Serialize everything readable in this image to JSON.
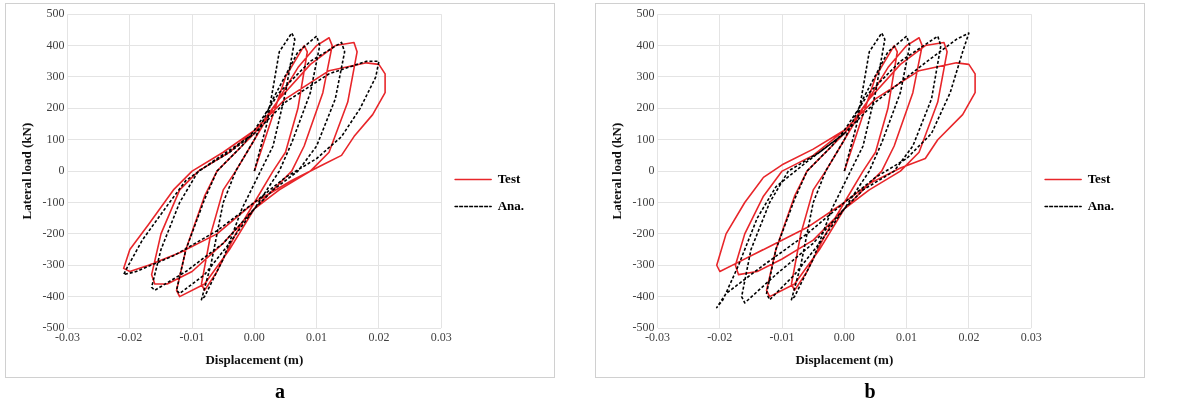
{
  "chart_data": [
    {
      "type": "line",
      "xlabel": "Displacement (m)",
      "ylabel": "Lateral load (kN)",
      "annotations": [
        "a"
      ],
      "xlim": [
        -0.03,
        0.03
      ],
      "ylim": [
        -500,
        500
      ],
      "xticks": [
        {
          "value": -0.03,
          "label": "-0.03"
        },
        {
          "value": -0.02,
          "label": "-0.02"
        },
        {
          "value": -0.01,
          "label": "-0.01"
        },
        {
          "value": 0,
          "label": "0.00"
        },
        {
          "value": 0.01,
          "label": "0.01"
        },
        {
          "value": 0.02,
          "label": "0.02"
        },
        {
          "value": 0.03,
          "label": "0.03"
        }
      ],
      "yticks": [
        -500,
        -400,
        -300,
        -200,
        -100,
        0,
        100,
        200,
        300,
        400,
        500
      ],
      "grid": true,
      "legend": "right",
      "marker": "none",
      "series": [
        {
          "name": "Test",
          "color": "#e8262a",
          "line_style": "solid",
          "x": [
            0,
            0.002,
            0.005,
            0.008,
            0.0085,
            0.007,
            0.005,
            0.003,
            0,
            -0.003,
            -0.006,
            -0.008,
            -0.0085,
            -0.007,
            -0.005,
            -0.003,
            0,
            0.003,
            0.007,
            0.01,
            0.012,
            0.0125,
            0.011,
            0.008,
            0.006,
            0.002,
            0,
            -0.004,
            -0.008,
            -0.012,
            -0.0125,
            -0.011,
            -0.008,
            -0.006,
            -0.002,
            0,
            0.004,
            0.009,
            0.013,
            0.016,
            0.0165,
            0.015,
            0.012,
            0.009,
            0.004,
            0,
            -0.005,
            -0.01,
            -0.014,
            -0.016,
            -0.0165,
            -0.015,
            -0.012,
            -0.009,
            -0.004,
            0,
            0.005,
            0.012,
            0.018,
            0.02,
            0.021,
            0.021,
            0.019,
            0.016,
            0.014,
            0.011,
            0.006,
            0,
            -0.006,
            -0.012,
            -0.017,
            -0.02,
            -0.021,
            -0.02,
            -0.017,
            -0.013,
            -0.01,
            -0.005,
            0
          ],
          "values": [
            0,
            120,
            300,
            400,
            380,
            200,
            60,
            0,
            -100,
            -200,
            -320,
            -380,
            -360,
            -200,
            -60,
            0,
            100,
            200,
            330,
            400,
            425,
            400,
            250,
            80,
            0,
            -80,
            -120,
            -250,
            -360,
            -400,
            -380,
            -250,
            -80,
            0,
            80,
            120,
            230,
            340,
            400,
            410,
            380,
            220,
            60,
            0,
            -60,
            -120,
            -230,
            -320,
            -360,
            -360,
            -330,
            -200,
            -60,
            0,
            60,
            130,
            230,
            320,
            345,
            340,
            310,
            250,
            180,
            110,
            50,
            20,
            -30,
            -100,
            -200,
            -260,
            -300,
            -320,
            -310,
            -250,
            -170,
            -60,
            0,
            60,
            130
          ]
        },
        {
          "name": "Ana.",
          "color": "#000000",
          "line_style": "dashed",
          "x": [
            0,
            0.002,
            0.004,
            0.006,
            0.0065,
            0.005,
            0.003,
            0.001,
            -0.002,
            -0.005,
            -0.008,
            -0.0085,
            -0.007,
            -0.005,
            -0.003,
            0,
            0.003,
            0.007,
            0.01,
            0.0105,
            0.009,
            0.006,
            0.004,
            0,
            -0.004,
            -0.008,
            -0.012,
            -0.0125,
            -0.011,
            -0.008,
            -0.006,
            -0.002,
            0,
            0.004,
            0.009,
            0.014,
            0.0145,
            0.013,
            0.01,
            0.007,
            0.003,
            0,
            -0.005,
            -0.011,
            -0.016,
            -0.0165,
            -0.015,
            -0.012,
            -0.009,
            -0.004,
            0,
            0.005,
            0.012,
            0.018,
            0.02,
            0.0195,
            0.017,
            0.014,
            0.01,
            0.005,
            0,
            -0.006,
            -0.013,
            -0.019,
            -0.021,
            -0.0205,
            -0.018,
            -0.014,
            -0.011,
            -0.006,
            0
          ],
          "values": [
            0,
            150,
            380,
            440,
            420,
            250,
            80,
            0,
            -120,
            -280,
            -400,
            -410,
            -300,
            -100,
            0,
            100,
            230,
            380,
            430,
            400,
            250,
            90,
            0,
            -120,
            -230,
            -330,
            -390,
            -380,
            -250,
            -90,
            0,
            80,
            130,
            250,
            350,
            410,
            380,
            230,
            80,
            0,
            -60,
            -120,
            -230,
            -320,
            -380,
            -370,
            -250,
            -100,
            0,
            60,
            120,
            220,
            310,
            350,
            350,
            300,
            200,
            110,
            40,
            -20,
            -100,
            -190,
            -270,
            -320,
            -330,
            -310,
            -220,
            -110,
            -30,
            40,
            120
          ]
        }
      ]
    },
    {
      "type": "line",
      "xlabel": "Displacement (m)",
      "ylabel": "Lateral load (kN)",
      "annotations": [
        "b"
      ],
      "xlim": [
        -0.03,
        0.03
      ],
      "ylim": [
        -500,
        500
      ],
      "xticks": [
        {
          "value": -0.03,
          "label": "-0.03"
        },
        {
          "value": -0.02,
          "label": "-0.02"
        },
        {
          "value": -0.01,
          "label": "-0.01"
        },
        {
          "value": 0,
          "label": "0.00"
        },
        {
          "value": 0.01,
          "label": "0.01"
        },
        {
          "value": 0.02,
          "label": "0.02"
        },
        {
          "value": 0.03,
          "label": "0.03"
        }
      ],
      "yticks": [
        -500,
        -400,
        -300,
        -200,
        -100,
        0,
        100,
        200,
        300,
        400,
        500
      ],
      "grid": true,
      "legend": "right",
      "marker": "none",
      "series": [
        {
          "name": "Test",
          "color": "#e8262a",
          "line_style": "solid",
          "x": [
            0,
            0.002,
            0.005,
            0.008,
            0.0085,
            0.007,
            0.005,
            0.003,
            0,
            -0.003,
            -0.006,
            -0.008,
            -0.0085,
            -0.007,
            -0.005,
            -0.003,
            0,
            0.003,
            0.007,
            0.01,
            0.012,
            0.0125,
            0.011,
            0.008,
            0.006,
            0.002,
            0,
            -0.004,
            -0.008,
            -0.012,
            -0.0125,
            -0.011,
            -0.008,
            -0.006,
            -0.002,
            0,
            0.004,
            0.009,
            0.013,
            0.016,
            0.0165,
            0.015,
            0.012,
            0.009,
            0.004,
            0,
            -0.005,
            -0.01,
            -0.014,
            -0.017,
            -0.0175,
            -0.016,
            -0.013,
            -0.01,
            -0.005,
            0,
            0.005,
            0.012,
            0.018,
            0.02,
            0.021,
            0.021,
            0.019,
            0.015,
            0.013,
            0.009,
            0.004,
            0,
            -0.006,
            -0.012,
            -0.017,
            -0.02,
            -0.0205,
            -0.019,
            -0.016,
            -0.013,
            -0.01,
            -0.005,
            0
          ],
          "values": [
            0,
            120,
            300,
            400,
            380,
            200,
            60,
            0,
            -100,
            -200,
            -320,
            -380,
            -360,
            -200,
            -60,
            0,
            100,
            200,
            330,
            400,
            425,
            400,
            250,
            80,
            0,
            -80,
            -120,
            -250,
            -360,
            -400,
            -380,
            -250,
            -80,
            0,
            80,
            120,
            230,
            340,
            400,
            410,
            380,
            220,
            60,
            0,
            -60,
            -120,
            -220,
            -280,
            -320,
            -330,
            -300,
            -200,
            -80,
            0,
            50,
            130,
            230,
            320,
            345,
            340,
            310,
            250,
            180,
            100,
            40,
            10,
            -40,
            -100,
            -180,
            -240,
            -290,
            -320,
            -300,
            -200,
            -100,
            -20,
            20,
            70,
            130
          ]
        },
        {
          "name": "Ana.",
          "color": "#000000",
          "line_style": "dashed",
          "x": [
            0,
            0.002,
            0.004,
            0.006,
            0.0065,
            0.005,
            0.003,
            0.001,
            -0.002,
            -0.005,
            -0.008,
            -0.0085,
            -0.007,
            -0.005,
            -0.003,
            0,
            0.003,
            0.007,
            0.01,
            0.0105,
            0.009,
            0.006,
            0.004,
            0,
            -0.004,
            -0.008,
            -0.012,
            -0.0125,
            -0.011,
            -0.008,
            -0.006,
            -0.002,
            0,
            0.004,
            0.009,
            0.015,
            0.0155,
            0.014,
            0.011,
            0.008,
            0.003,
            0,
            -0.005,
            -0.011,
            -0.016,
            -0.0165,
            -0.015,
            -0.012,
            -0.009,
            -0.004,
            0,
            0.005,
            0.012,
            0.018,
            0.02,
            0.019,
            0.017,
            0.014,
            0.01,
            0.005,
            0,
            -0.006,
            -0.013,
            -0.019,
            -0.0205,
            -0.0195,
            -0.017,
            -0.014,
            -0.011,
            -0.006,
            0
          ],
          "values": [
            0,
            150,
            380,
            440,
            420,
            250,
            80,
            0,
            -120,
            -280,
            -400,
            -410,
            -300,
            -100,
            0,
            100,
            230,
            380,
            430,
            400,
            250,
            90,
            0,
            -120,
            -230,
            -330,
            -410,
            -390,
            -250,
            -90,
            0,
            80,
            130,
            250,
            350,
            430,
            400,
            230,
            80,
            0,
            -60,
            -120,
            -230,
            -330,
            -420,
            -400,
            -250,
            -100,
            0,
            60,
            120,
            220,
            330,
            420,
            440,
            380,
            250,
            120,
            40,
            -20,
            -100,
            -200,
            -300,
            -390,
            -435,
            -410,
            -300,
            -150,
            -50,
            30,
            120
          ]
        }
      ]
    }
  ]
}
